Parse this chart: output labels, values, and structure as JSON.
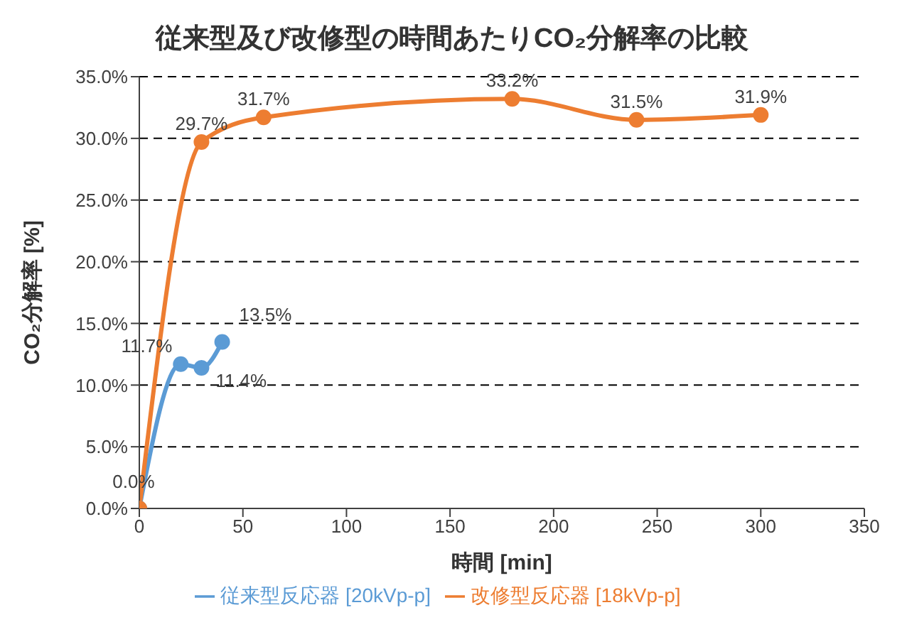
{
  "chart_data": {
    "type": "line",
    "title": "従来型及び改修型の時間あたりCO₂分解率の比較",
    "xlabel": "時間 [min]",
    "ylabel": "CO₂分解率 [%]",
    "xlim": [
      0,
      350
    ],
    "xticks": [
      0,
      50,
      100,
      150,
      200,
      250,
      300,
      350
    ],
    "ylim": [
      0,
      35
    ],
    "yticks": [
      {
        "value": 0,
        "label": "0.0%"
      },
      {
        "value": 5,
        "label": "5.0%"
      },
      {
        "value": 10,
        "label": "10.0%"
      },
      {
        "value": 15,
        "label": "15.0%"
      },
      {
        "value": 20,
        "label": "20.0%"
      },
      {
        "value": 25,
        "label": "25.0%"
      },
      {
        "value": 30,
        "label": "30.0%"
      },
      {
        "value": 35,
        "label": "35.0%"
      }
    ],
    "grid": "y",
    "legend": "bottom",
    "marker": "circle",
    "series": [
      {
        "name": "従来型反応器 [20kVp-p]",
        "color": "#5b9bd5",
        "x": [
          0,
          20,
          30,
          40
        ],
        "values": [
          0,
          11.7,
          11.4,
          13.5
        ],
        "value_labels": [
          null,
          "11.7%",
          "11.4%",
          "13.5%"
        ]
      },
      {
        "name": "改修型反応器 [18kVp-p]",
        "color": "#ed7d31",
        "x": [
          0,
          30,
          60,
          180,
          240,
          300
        ],
        "values": [
          0,
          29.7,
          31.7,
          33.2,
          31.5,
          31.9
        ],
        "value_labels": [
          "0.0%",
          "29.7%",
          "31.7%",
          "33.2%",
          "31.5%",
          "31.9%"
        ]
      }
    ]
  }
}
